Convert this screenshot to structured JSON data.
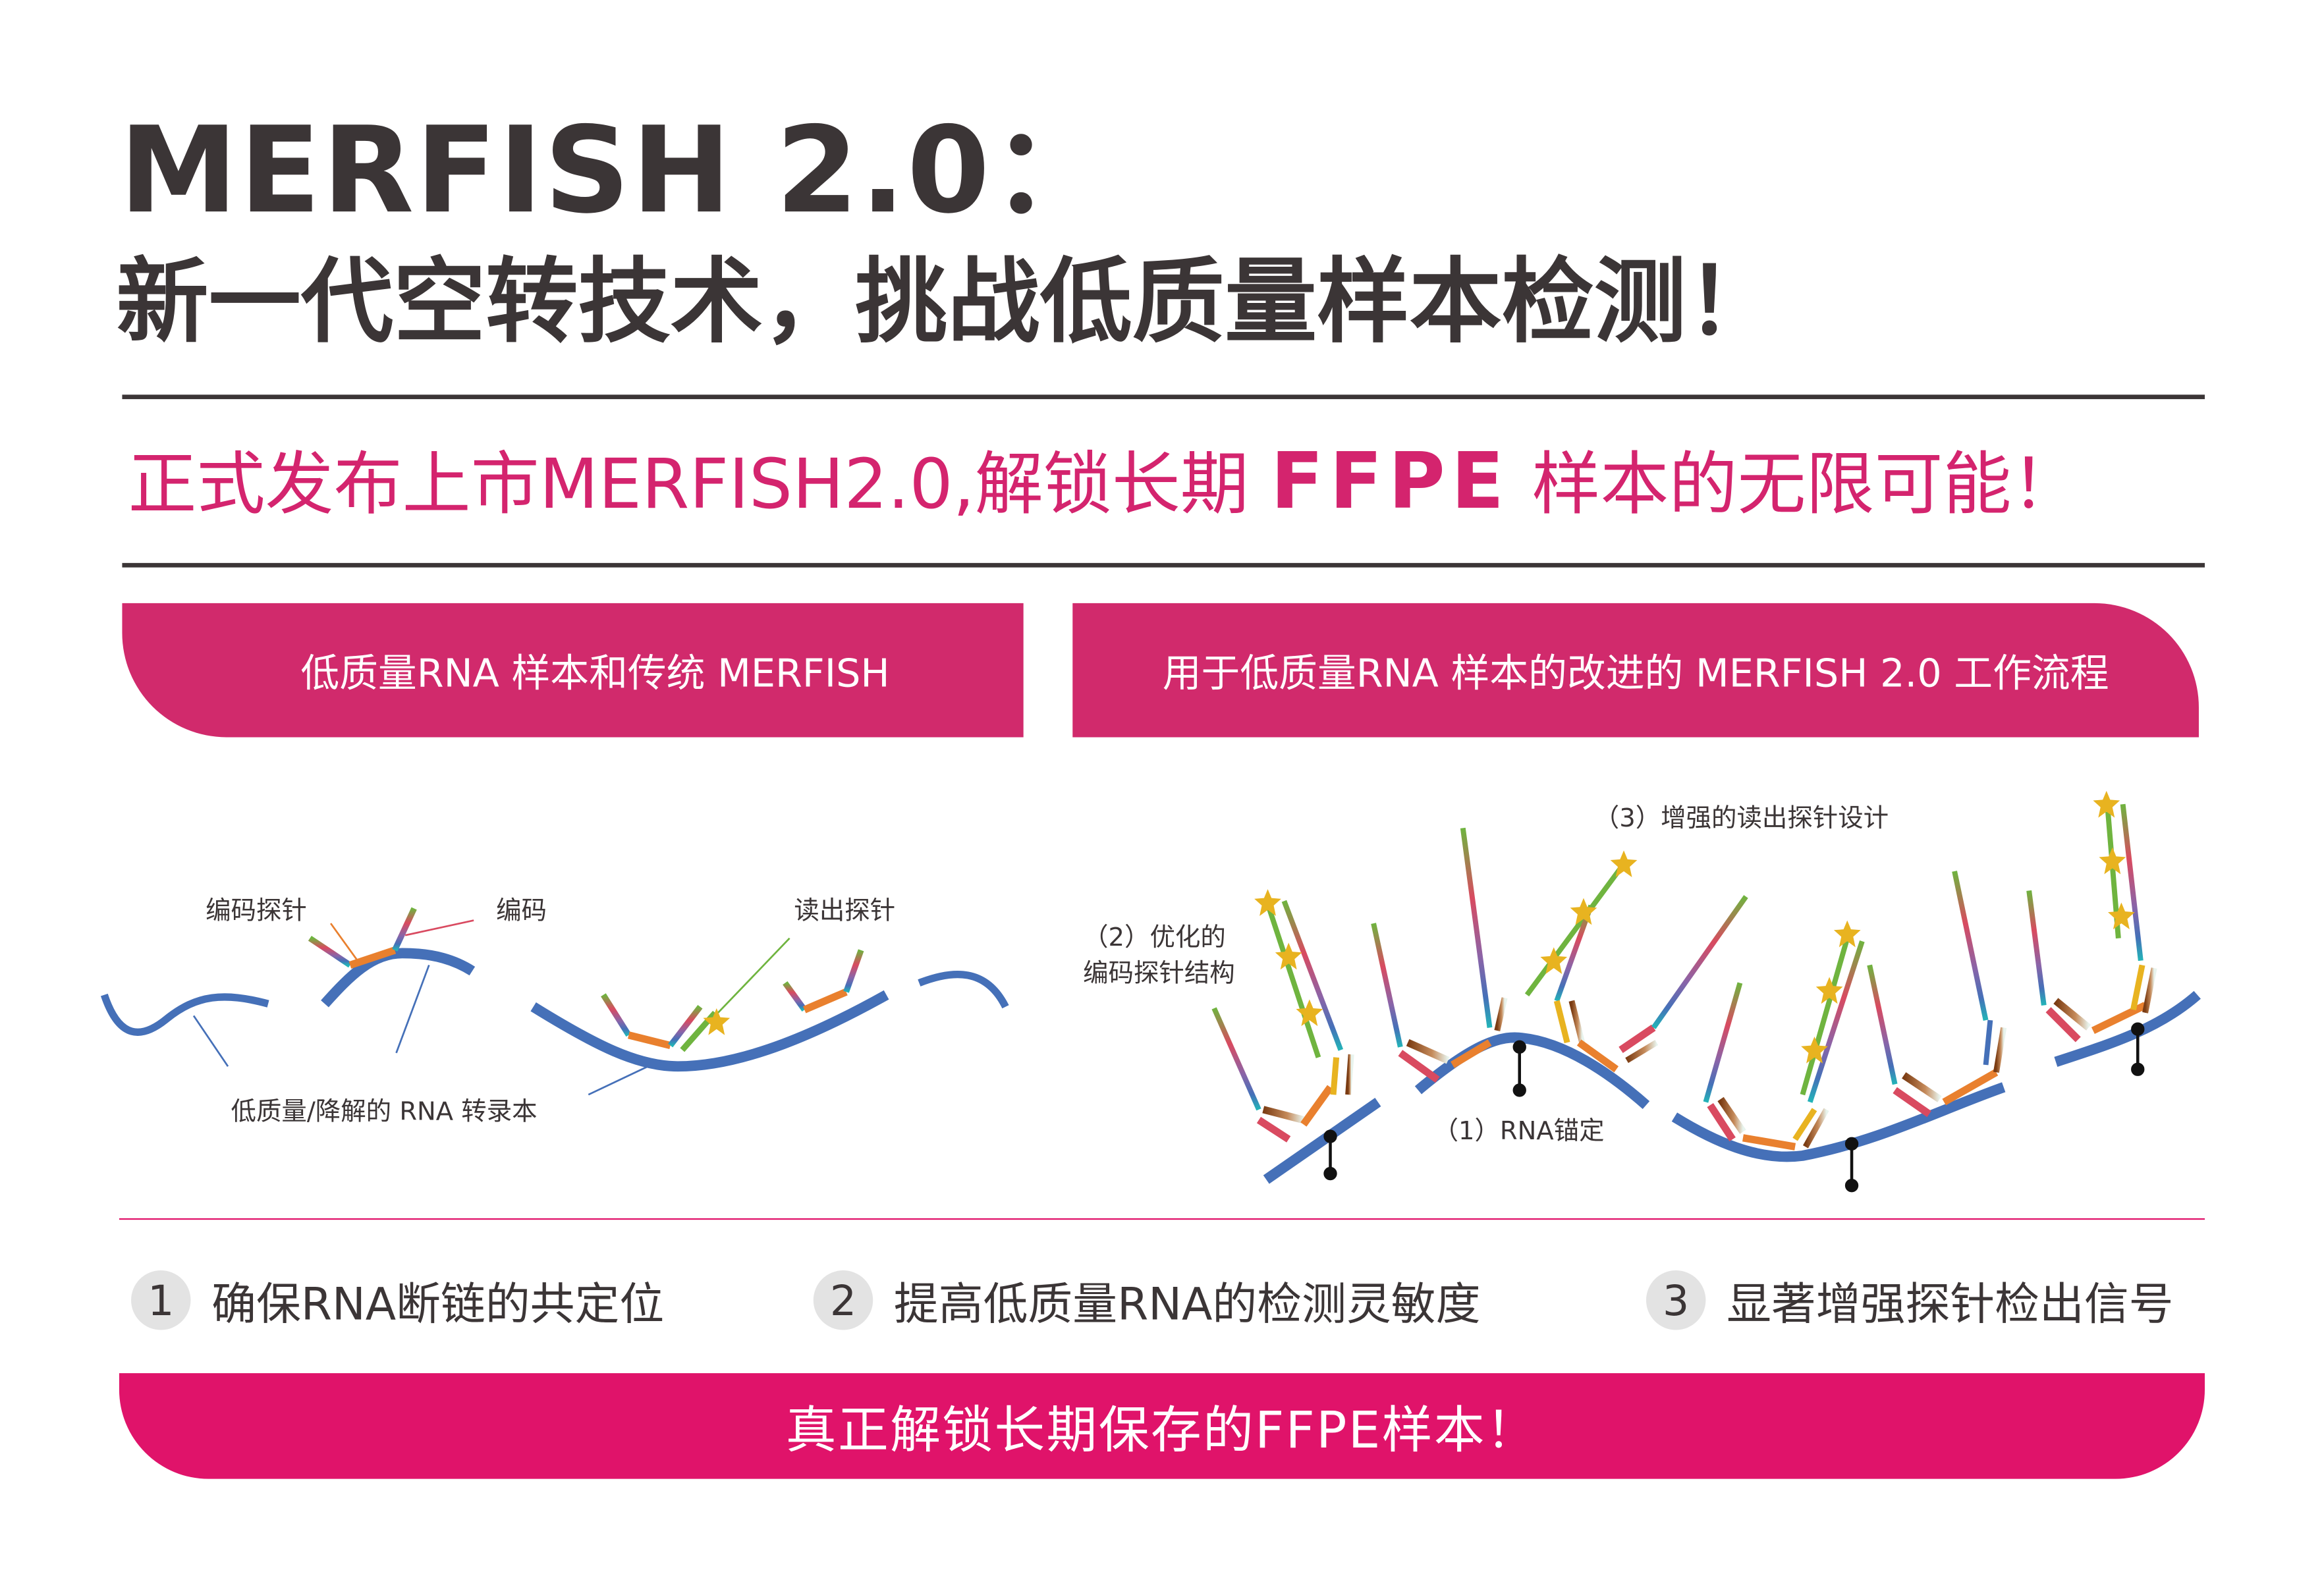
{
  "header": {
    "title": "MERFISH 2.0：",
    "subtitle": "新一代空转技术，挑战低质量样本检测！"
  },
  "headline": {
    "part1": "正式发布上市MERFISH2.0,解锁长期 ",
    "part2": "FFPE",
    "part3": " 样本的无限可能！"
  },
  "tabs": [
    {
      "label": "低质量RNA 样本和传统 MERFISH"
    },
    {
      "label": "用于低质量RNA 样本的改进的 MERFISH 2.0 工作流程"
    }
  ],
  "left_diagram": {
    "labels": {
      "encoding_probe": "编码探针",
      "encoding": "编码",
      "readout_probe": "读出探针",
      "transcript": "低质量/降解的 RNA 转录本"
    }
  },
  "right_diagram": {
    "labels": {
      "anchoring": "（1）RNA锚定",
      "optimized_1": "（2）优化的",
      "optimized_2": "编码探针结构",
      "readout": "（3）增强的读出探针设计"
    }
  },
  "steps": [
    {
      "num": "1",
      "label": "确保RNA断链的共定位"
    },
    {
      "num": "2",
      "label": "提高低质量RNA的检测灵敏度"
    },
    {
      "num": "3",
      "label": "显著增强探针检出信号"
    }
  ],
  "footer": {
    "label": "真正解锁长期保存的FFPE样本！"
  },
  "colors": {
    "text": "#3b3536",
    "accent": "#d4246e",
    "tab": "#d12a6c",
    "bar": "#e0136a",
    "rna": "#4570b8",
    "star": "#e8b320"
  }
}
